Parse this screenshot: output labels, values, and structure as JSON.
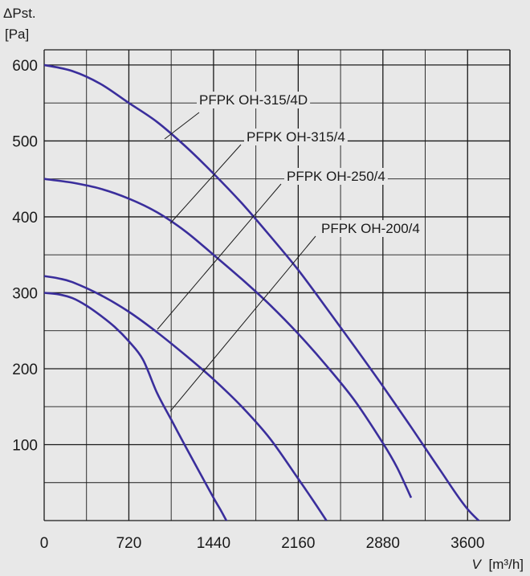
{
  "chart_data": {
    "type": "line",
    "title": "",
    "ylabel_symbol": "ΔPst.",
    "ylabel_unit": "[Pa]",
    "xlabel_symbol": "V",
    "xlabel_unit": "[m³/h]",
    "xlim": [
      0,
      3960
    ],
    "ylim": [
      0,
      620
    ],
    "grid": true,
    "x_ticks": [
      0,
      720,
      1440,
      2160,
      2880,
      3600
    ],
    "y_ticks": [
      100,
      200,
      300,
      400,
      500,
      600
    ],
    "x_minor_step": 360,
    "y_minor_step": 50,
    "line_color": "#3a2e9c",
    "series": [
      {
        "name": "PFPK OH-315/4D",
        "x": [
          0,
          240,
          480,
          720,
          960,
          1200,
          1440,
          1680,
          1920,
          2160,
          2400,
          2640,
          2880,
          3120,
          3360,
          3600,
          3840
        ],
        "y": [
          600,
          592,
          575,
          550,
          525,
          493,
          457,
          418,
          375,
          330,
          280,
          229,
          177,
          123,
          68,
          15,
          -20
        ]
      },
      {
        "name": "PFPK OH-315/4",
        "x": [
          0,
          240,
          480,
          720,
          960,
          1200,
          1440,
          1680,
          1920,
          2160,
          2400,
          2640,
          2880,
          3000,
          3120
        ],
        "y": [
          450,
          445,
          437,
          424,
          406,
          381,
          350,
          318,
          284,
          246,
          204,
          158,
          102,
          70,
          30
        ]
      },
      {
        "name": "PFPK OH-250/4",
        "x": [
          0,
          120,
          240,
          480,
          720,
          960,
          1200,
          1440,
          1680,
          1920,
          2160,
          2280,
          2400
        ],
        "y": [
          322,
          319,
          314,
          297,
          275,
          248,
          218,
          186,
          150,
          108,
          55,
          28,
          0
        ]
      },
      {
        "name": "PFPK OH-200/4",
        "x": [
          0,
          120,
          240,
          360,
          480,
          600,
          720,
          840,
          960,
          1080,
          1200,
          1320,
          1440,
          1500,
          1560
        ],
        "y": [
          300,
          298,
          293,
          283,
          270,
          255,
          236,
          212,
          168,
          133,
          98,
          64,
          30,
          14,
          -3
        ]
      }
    ],
    "annotations": [
      {
        "text": "PFPK OH-315/4D",
        "series": 0
      },
      {
        "text": "PFPK OH-315/4",
        "series": 1
      },
      {
        "text": "PFPK OH-250/4",
        "series": 2
      },
      {
        "text": "PFPK OH-200/4",
        "series": 3
      }
    ]
  }
}
